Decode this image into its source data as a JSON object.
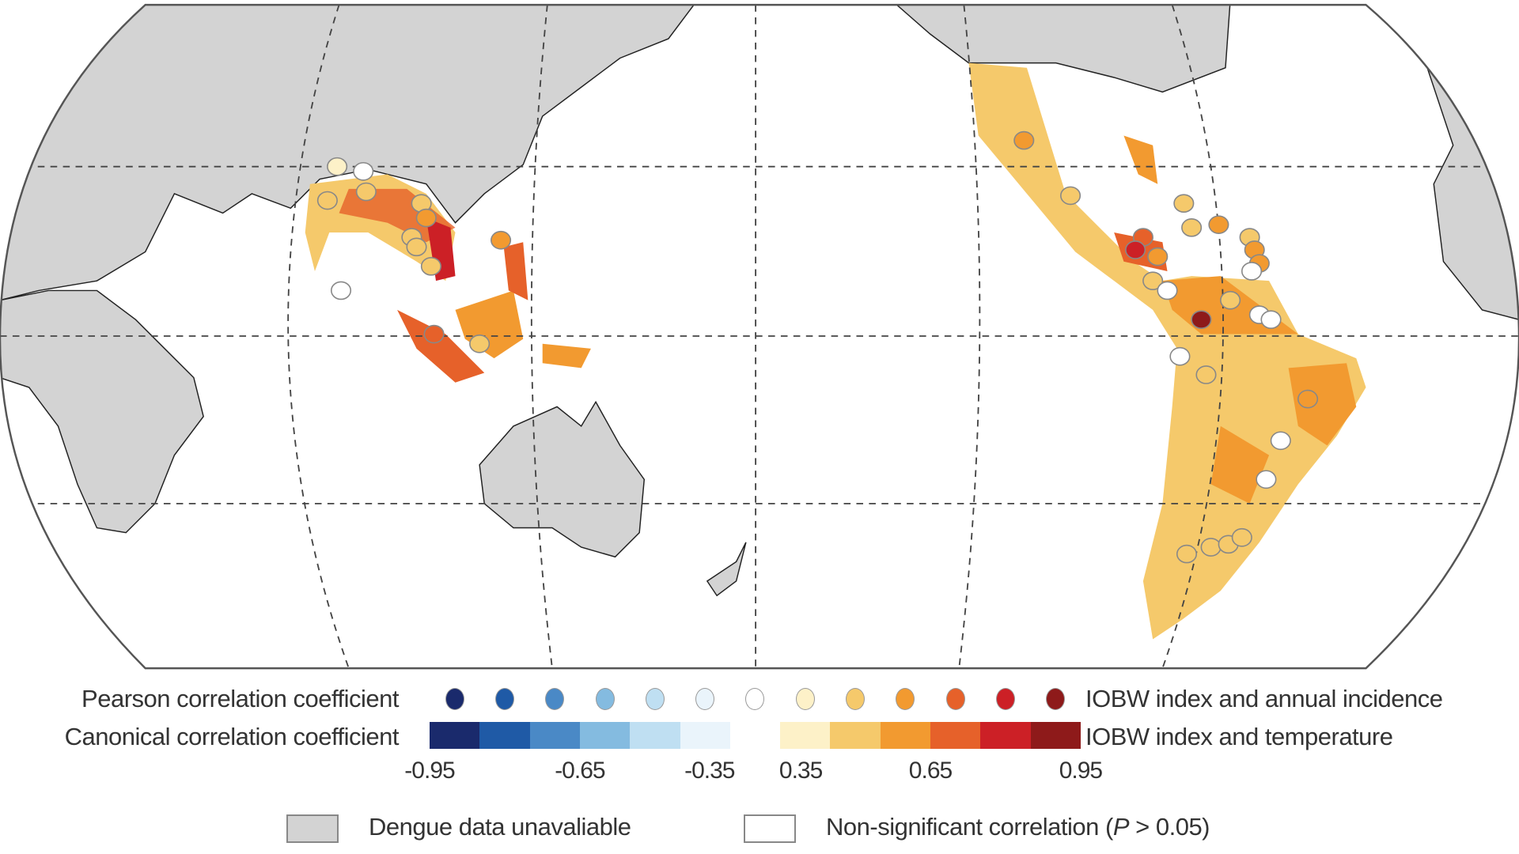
{
  "legend": {
    "pearson_label": "Pearson correlation coefficient",
    "pearson_desc": "IOBW index and annual incidence",
    "canonical_label": "Canonical correlation coefficient",
    "canonical_desc": "IOBW index and temperature",
    "colors": [
      "#1a2a6c",
      "#1f5aa6",
      "#4a89c6",
      "#84bbe0",
      "#bfdff2",
      "#eaf4fb",
      "#ffffff",
      "#fdf1c8",
      "#f5c96b",
      "#f29a30",
      "#e6612a",
      "#cc2026",
      "#8e1a1a"
    ],
    "ticks": [
      "-0.95",
      "-0.65",
      "-0.35",
      "0.35",
      "0.65",
      "0.95"
    ],
    "unavailable_label": "Dengue data unavaliable",
    "nonsig_label": "Non-significant correlation (",
    "nonsig_p": "P",
    "nonsig_rest": " > 0.05)",
    "unavailable_color": "#d3d3d3"
  }
}
